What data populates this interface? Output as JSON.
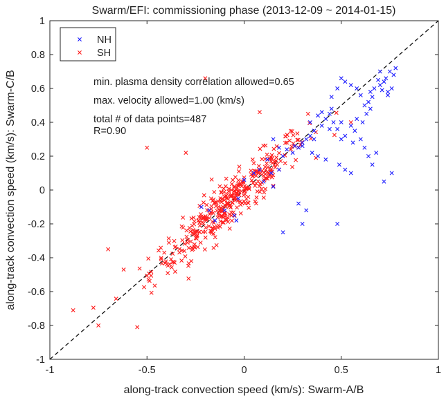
{
  "chart_data": {
    "type": "scatter",
    "title": "Swarm/EFI: commissioning phase (2013-12-09 ~ 2014-01-15)",
    "xlabel": "along-track convection speed (km/s): Swarm-A/B",
    "ylabel": "along-track convection speed (km/s): Swarm-C/B",
    "xlim": [
      -1,
      1
    ],
    "ylim": [
      -1,
      1
    ],
    "xticks": [
      -1,
      -0.5,
      0,
      0.5,
      1
    ],
    "yticks": [
      -1,
      -0.8,
      -0.6,
      -0.4,
      -0.2,
      0,
      0.2,
      0.4,
      0.6,
      0.8,
      1
    ],
    "grid": false,
    "legend_position": "top-left",
    "reference_line": "y = x (dashed, black)",
    "annotations": [
      "min. plasma density correlation allowed=0.65",
      "max. velocity allowed=1.00 (km/s)",
      "total # of data points=487",
      "R=0.90"
    ],
    "series": [
      {
        "name": "NH",
        "color": "#1f1fff",
        "marker": "x",
        "points": [
          [
            0.78,
            0.72
          ],
          [
            0.75,
            0.7
          ],
          [
            0.77,
            0.68
          ],
          [
            0.73,
            0.66
          ],
          [
            0.72,
            0.64
          ],
          [
            0.76,
            0.6
          ],
          [
            0.74,
            0.58
          ],
          [
            0.71,
            0.59
          ],
          [
            0.7,
            0.62
          ],
          [
            0.69,
            0.65
          ],
          [
            0.67,
            0.6
          ],
          [
            0.66,
            0.55
          ],
          [
            0.64,
            0.52
          ],
          [
            0.62,
            0.5
          ],
          [
            0.65,
            0.48
          ],
          [
            0.63,
            0.45
          ],
          [
            0.61,
            0.4
          ],
          [
            0.58,
            0.42
          ],
          [
            0.57,
            0.35
          ],
          [
            0.55,
            0.38
          ],
          [
            0.52,
            0.32
          ],
          [
            0.5,
            0.3
          ],
          [
            0.48,
            0.36
          ],
          [
            0.46,
            0.4
          ],
          [
            0.44,
            0.45
          ],
          [
            0.42,
            0.42
          ],
          [
            0.4,
            0.38
          ],
          [
            0.38,
            0.44
          ],
          [
            0.36,
            0.35
          ],
          [
            0.34,
            0.32
          ],
          [
            0.32,
            0.3
          ],
          [
            0.3,
            0.28
          ],
          [
            0.28,
            0.25
          ],
          [
            0.25,
            0.22
          ],
          [
            0.22,
            0.24
          ],
          [
            0.2,
            0.2
          ],
          [
            0.18,
            0.25
          ],
          [
            0.15,
            0.3
          ],
          [
            0.45,
            0.55
          ],
          [
            0.48,
            0.6
          ],
          [
            0.5,
            0.66
          ],
          [
            0.52,
            0.64
          ],
          [
            0.55,
            0.62
          ],
          [
            0.58,
            0.6
          ],
          [
            0.6,
            0.3
          ],
          [
            0.62,
            0.25
          ],
          [
            0.64,
            0.2
          ],
          [
            0.66,
            0.15
          ],
          [
            0.68,
            0.22
          ],
          [
            0.49,
            0.15
          ],
          [
            0.52,
            0.12
          ],
          [
            0.55,
            0.1
          ],
          [
            0.72,
            0.05
          ],
          [
            0.76,
            0.1
          ],
          [
            0.48,
            -0.2
          ],
          [
            0.42,
            0.18
          ],
          [
            0.38,
            0.2
          ],
          [
            0.35,
            0.22
          ],
          [
            0.32,
            -0.12
          ],
          [
            0.3,
            -0.2
          ],
          [
            0.28,
            -0.08
          ],
          [
            0.2,
            -0.25
          ],
          [
            0.15,
            0.02
          ],
          [
            0.1,
            0.05
          ],
          [
            0.05,
            0.1
          ],
          [
            0.0,
            0.06
          ],
          [
            -0.03,
            -0.05
          ],
          [
            -0.05,
            -0.15
          ],
          [
            -0.1,
            -0.12
          ],
          [
            -0.15,
            -0.18
          ],
          [
            -0.18,
            -0.12
          ],
          [
            -0.22,
            -0.1
          ],
          [
            -0.04,
            -0.18
          ],
          [
            0.08,
            0.12
          ],
          [
            0.12,
            0.18
          ],
          [
            0.26,
            0.26
          ],
          [
            0.34,
            0.4
          ],
          [
            0.4,
            0.46
          ],
          [
            0.45,
            0.48
          ],
          [
            0.6,
            0.56
          ],
          [
            0.65,
            0.58
          ],
          [
            0.7,
            0.7
          ],
          [
            0.74,
            0.56
          ],
          [
            0.56,
            0.28
          ],
          [
            0.5,
            0.4
          ],
          [
            0.44,
            0.36
          ],
          [
            0.36,
            0.3
          ],
          [
            0.3,
            0.26
          ],
          [
            0.18,
            0.12
          ],
          [
            0.14,
            0.1
          ]
        ]
      },
      {
        "name": "SH",
        "color": "#ff1f1f",
        "marker": "x"
      }
    ]
  }
}
